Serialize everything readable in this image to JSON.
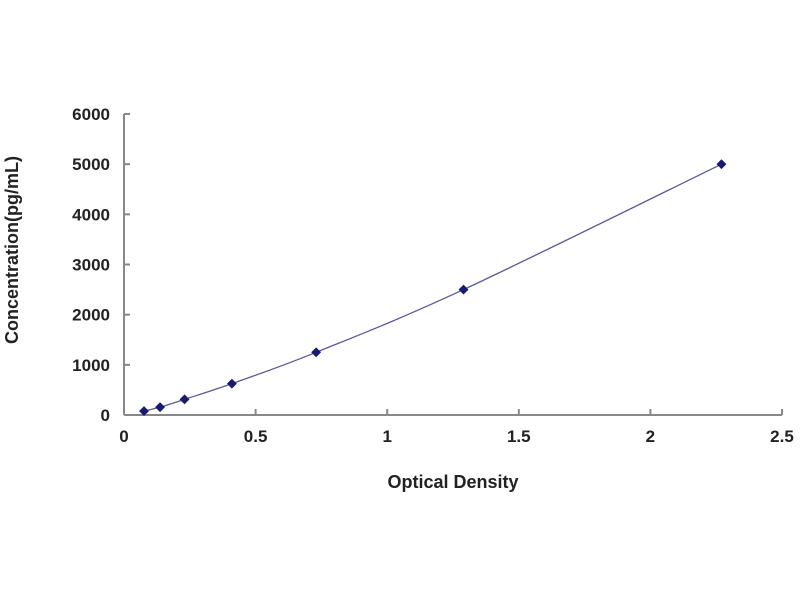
{
  "chart_data": {
    "type": "scatter",
    "title": "",
    "xlabel": "Optical Density",
    "ylabel": "Concentration(pg/mL)",
    "xlim": [
      0,
      2.5
    ],
    "ylim": [
      0,
      6000
    ],
    "xticks": [
      "0",
      "0.5",
      "1",
      "1.5",
      "2",
      "2.5"
    ],
    "yticks": [
      "0",
      "1000",
      "2000",
      "3000",
      "4000",
      "5000",
      "6000"
    ],
    "grid": false,
    "points": [
      {
        "x": 0.076,
        "y": 78
      },
      {
        "x": 0.137,
        "y": 156
      },
      {
        "x": 0.23,
        "y": 312
      },
      {
        "x": 0.41,
        "y": 625
      },
      {
        "x": 0.73,
        "y": 1250
      },
      {
        "x": 1.29,
        "y": 2500
      },
      {
        "x": 2.27,
        "y": 5000
      }
    ],
    "fit_line": true,
    "colors": {
      "points": "#1a1a6e",
      "line": "#5a5a9a",
      "axes": "#888888"
    }
  }
}
